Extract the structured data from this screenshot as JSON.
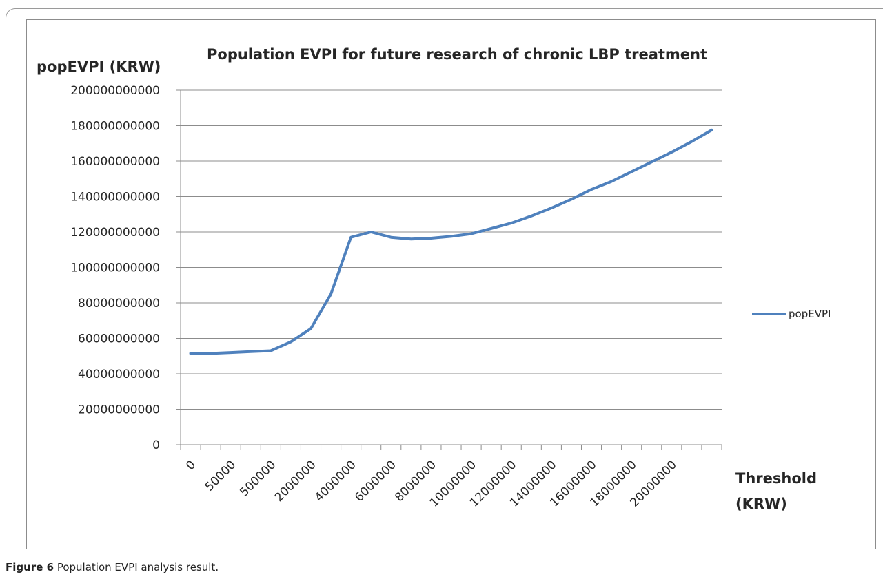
{
  "figure": {
    "caption_label": "Figure 6",
    "caption_text": "Population EVPI analysis result."
  },
  "chart_data": {
    "type": "line",
    "title": "Population EVPI for future research of chronic LBP treatment",
    "ylabel": "popEVPI (KRW)",
    "xlabel_line1": "Threshold",
    "xlabel_line2": "(KRW)",
    "ylim": [
      0,
      200000000000
    ],
    "yticks": [
      "0",
      "20000000000",
      "40000000000",
      "60000000000",
      "80000000000",
      "100000000000",
      "120000000000",
      "140000000000",
      "160000000000",
      "180000000000",
      "200000000000"
    ],
    "ytick_values": [
      0,
      20000000000,
      40000000000,
      60000000000,
      80000000000,
      100000000000,
      120000000000,
      140000000000,
      160000000000,
      180000000000,
      200000000000
    ],
    "xtick_labels": [
      "0",
      "50000",
      "500000",
      "2000000",
      "4000000",
      "6000000",
      "8000000",
      "10000000",
      "12000000",
      "14000000",
      "16000000",
      "18000000",
      "20000000"
    ],
    "grid": true,
    "legend_position": "right",
    "series": [
      {
        "name": "popEVPI",
        "color": "#4f81bd",
        "values": [
          51500000000,
          51500000000,
          52000000000,
          52500000000,
          53000000000,
          58000000000,
          65500000000,
          85000000000,
          117000000000,
          120000000000,
          117000000000,
          116000000000,
          116500000000,
          117500000000,
          119000000000,
          122000000000,
          125000000000,
          129000000000,
          133500000000,
          138500000000,
          144000000000,
          148500000000,
          154000000000,
          159500000000,
          165000000000,
          171000000000,
          177500000000
        ]
      }
    ]
  }
}
